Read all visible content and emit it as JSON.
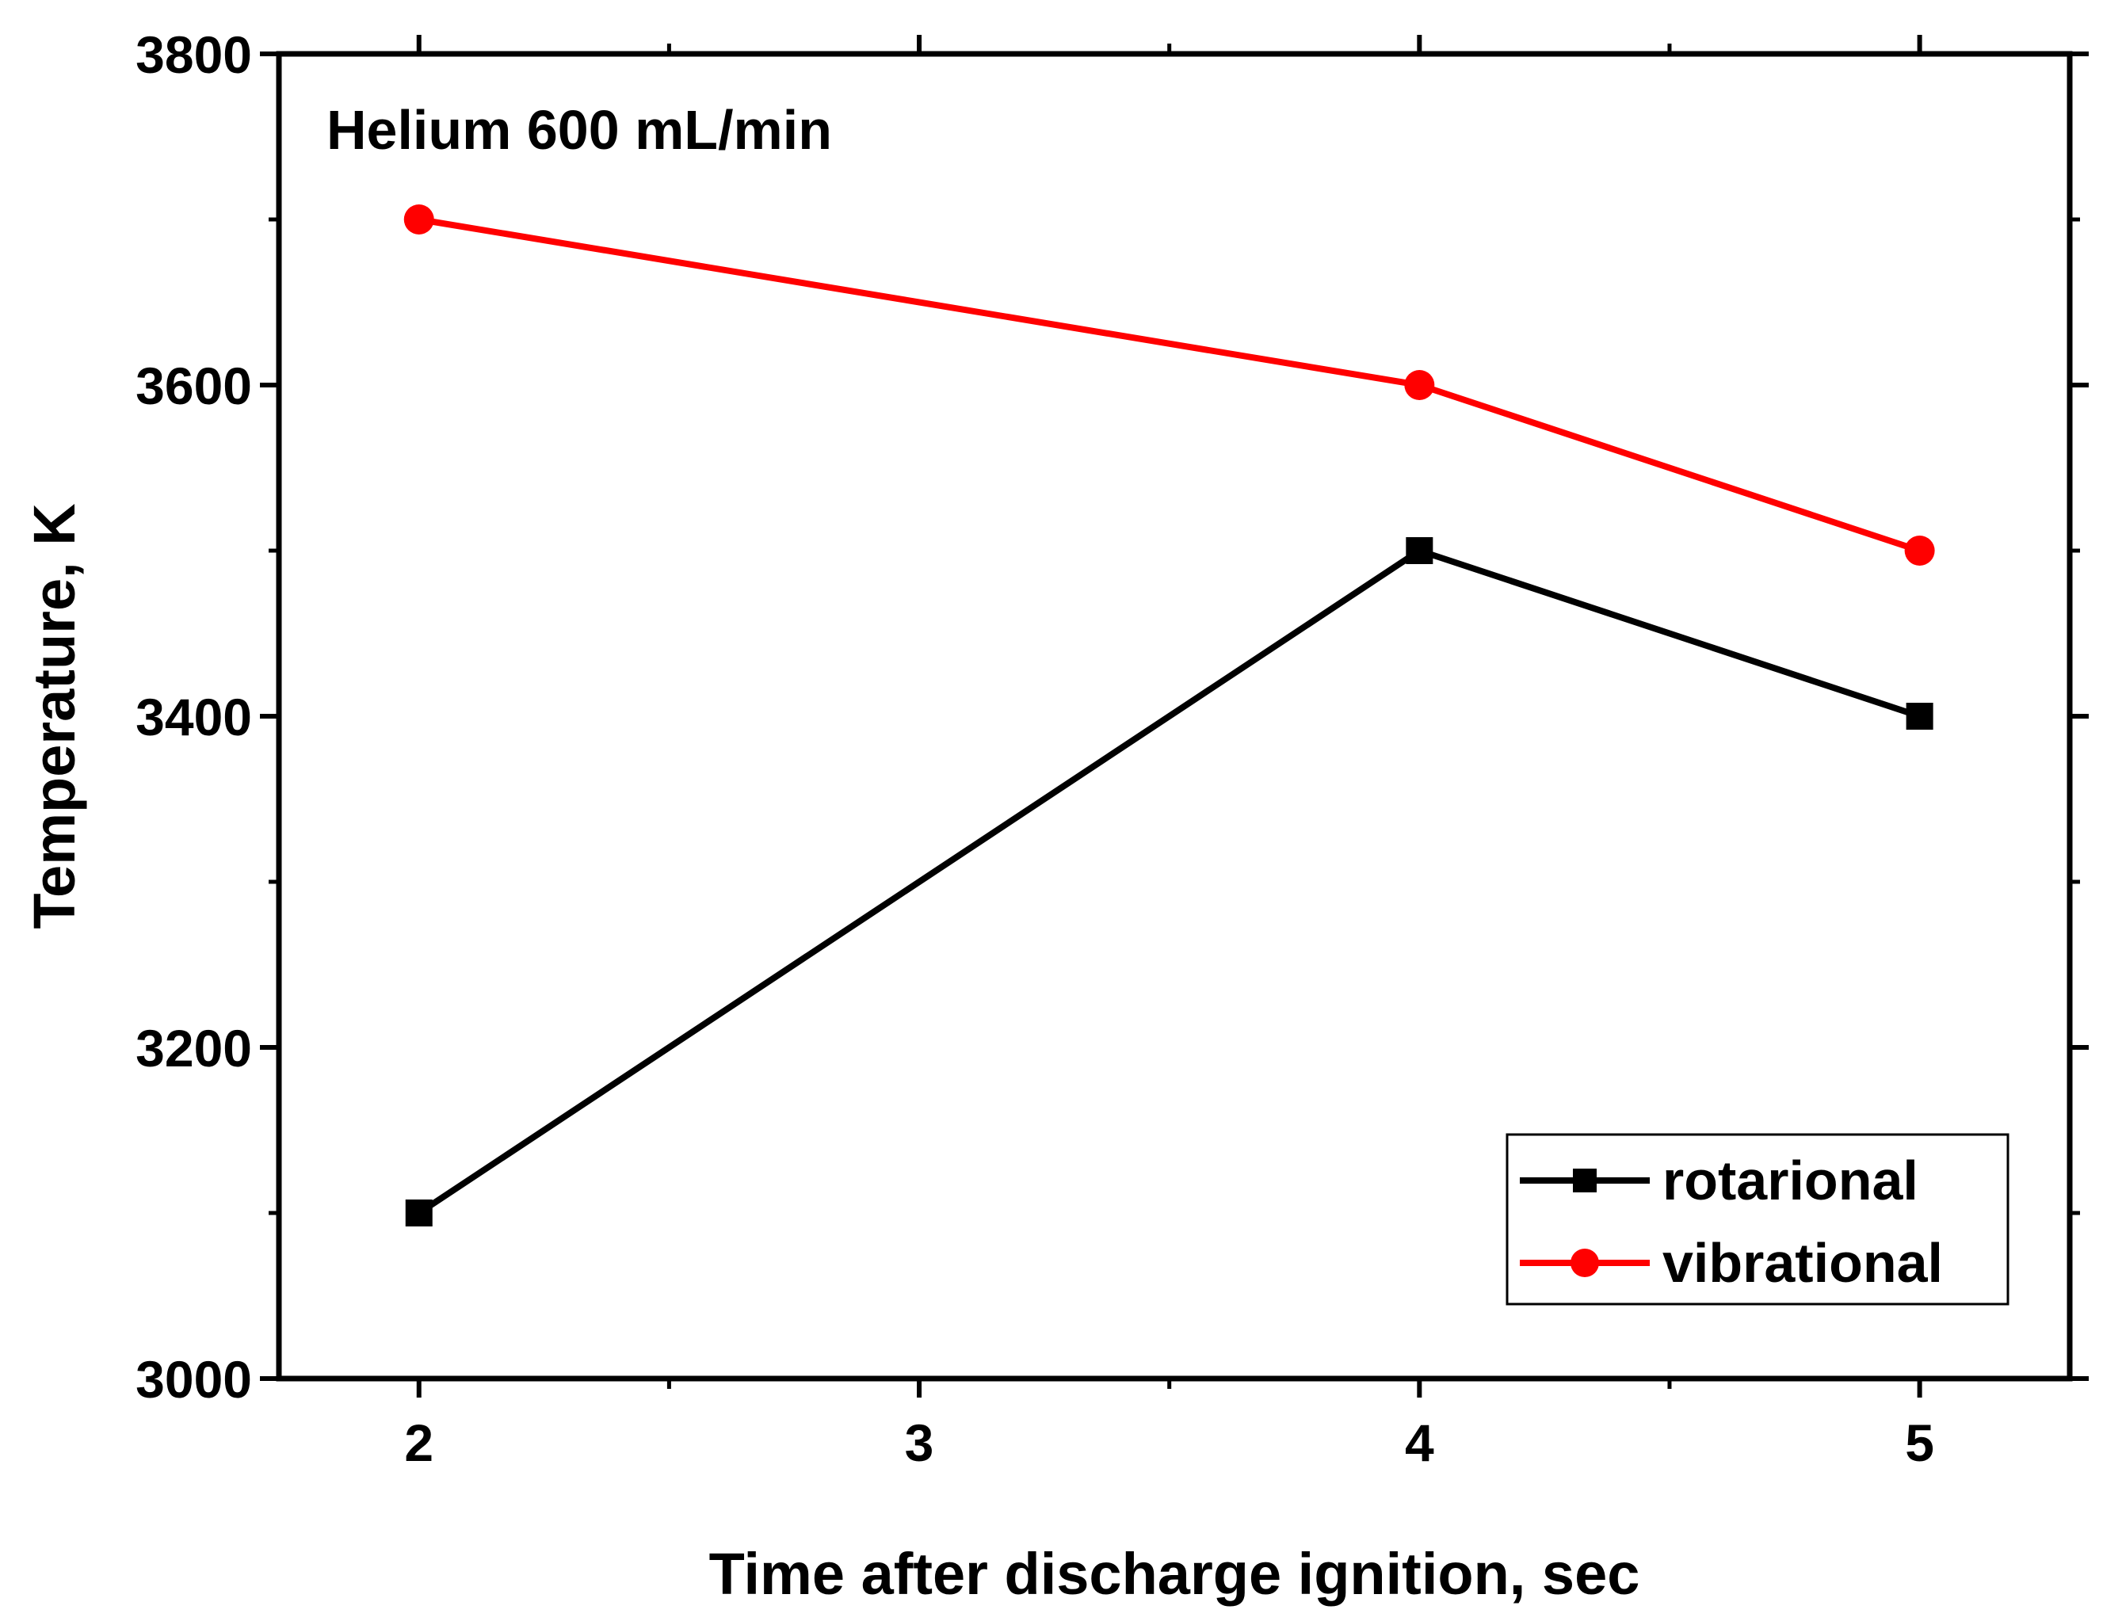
{
  "chart_data": {
    "type": "line",
    "annotation": "Helium 600 mL/min",
    "xlabel": "Time after discharge ignition, sec",
    "ylabel": "Temperature, K",
    "xlim": [
      1.72,
      5.3
    ],
    "ylim": [
      3000,
      3800
    ],
    "x_ticks": [
      2,
      3,
      4,
      5
    ],
    "x_tick_labels": [
      "2",
      "3",
      "4",
      "5"
    ],
    "x_minor_ticks": [
      2.5,
      3.5,
      4.5
    ],
    "y_ticks": [
      3000,
      3200,
      3400,
      3600,
      3800
    ],
    "y_tick_labels": [
      "3000",
      "3200",
      "3400",
      "3600",
      "3800"
    ],
    "y_minor_ticks": [
      3100,
      3300,
      3500,
      3700
    ],
    "legend_position": "bottom-right",
    "series": [
      {
        "name": "rotarional",
        "color": "#000000",
        "marker": "square",
        "x": [
          2,
          4,
          5
        ],
        "values": [
          3100,
          3500,
          3400
        ]
      },
      {
        "name": "vibrational",
        "color": "#ff0000",
        "marker": "circle",
        "x": [
          2,
          4,
          5
        ],
        "values": [
          3700,
          3600,
          3500
        ]
      }
    ]
  }
}
